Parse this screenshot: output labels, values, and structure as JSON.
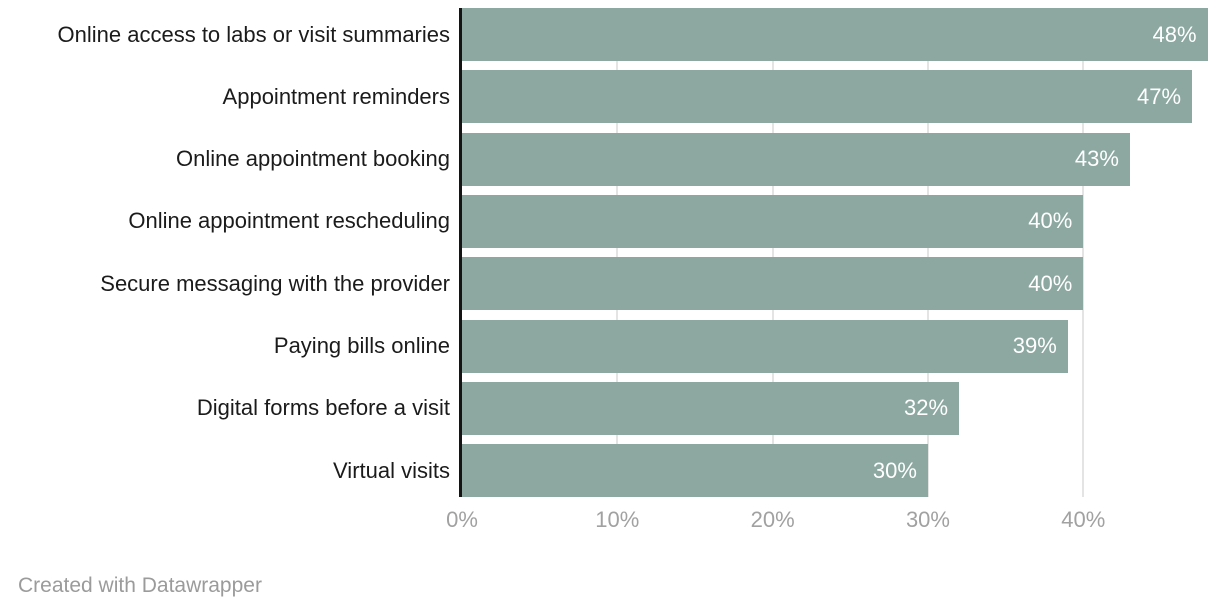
{
  "chart_data": {
    "type": "bar",
    "orientation": "horizontal",
    "title": "",
    "xlabel": "",
    "ylabel": "",
    "categories": [
      "Online access to labs or visit summaries",
      "Appointment reminders",
      "Online appointment booking",
      "Online appointment rescheduling",
      "Secure messaging with the provider",
      "Paying bills online",
      "Digital forms before a visit",
      "Virtual visits"
    ],
    "values": [
      48,
      47,
      43,
      40,
      40,
      39,
      32,
      30
    ],
    "data_labels": [
      "48%",
      "47%",
      "43%",
      "40%",
      "40%",
      "39%",
      "32%",
      "30%"
    ],
    "unit": "%",
    "xlim": [
      0,
      48.8
    ],
    "x_tick_values": [
      0,
      10,
      20,
      30,
      40
    ],
    "x_tick_labels": [
      "0%",
      "10%",
      "20%",
      "30%",
      "40%"
    ],
    "grid": "vertical-only",
    "legend": "none"
  },
  "footer": {
    "credit": "Created with Datawrapper"
  },
  "colors": {
    "background": "#ffffff",
    "bar": "#8ca8a1",
    "value_text": "#ffffff",
    "label_text": "#1b1b1b",
    "tick_text": "#a1a1a1",
    "grid_line": "#e4e4e4",
    "axis_line": "#141414",
    "credit_text": "#9b9b9b"
  }
}
